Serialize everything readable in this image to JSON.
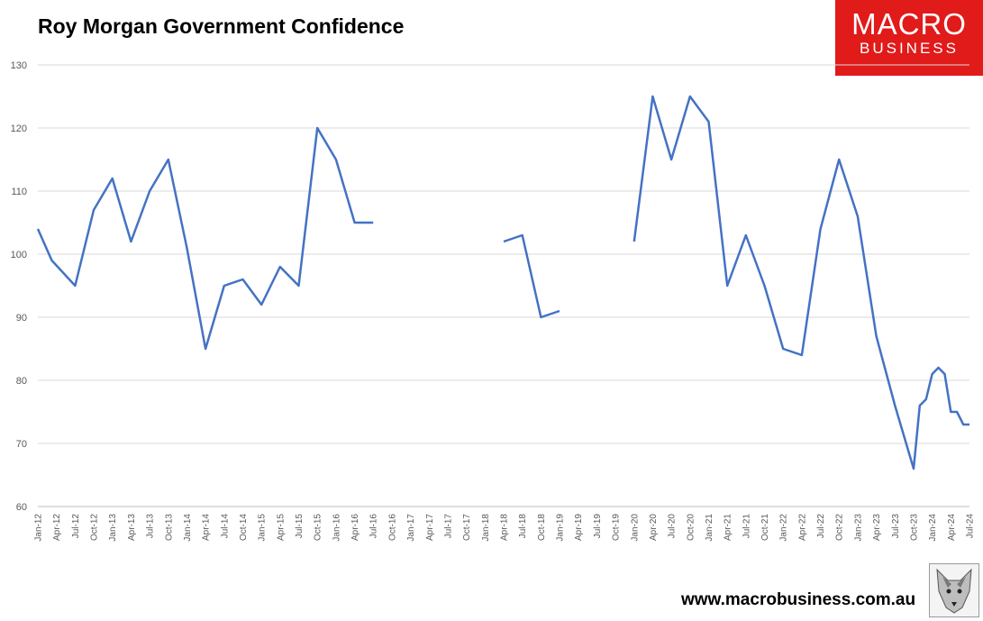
{
  "header": {
    "title": "Roy Morgan Government Confidence"
  },
  "logo": {
    "line1": "MACRO",
    "line2": "BUSINESS",
    "color": "#e11a1a"
  },
  "footer": {
    "website": "www.macrobusiness.com.au"
  },
  "chart_data": {
    "type": "line",
    "title": "Roy Morgan Government Confidence",
    "xlabel": "",
    "ylabel": "",
    "ylim": [
      60,
      130
    ],
    "yticks": [
      60,
      70,
      80,
      90,
      100,
      110,
      120,
      130
    ],
    "grid": true,
    "line_color": "#4472c4",
    "categories": [
      "Jan-12",
      "Apr-12",
      "Jul-12",
      "Oct-12",
      "Jan-13",
      "Apr-13",
      "Jul-13",
      "Oct-13",
      "Jan-14",
      "Apr-14",
      "Jul-14",
      "Oct-14",
      "Jan-15",
      "Apr-15",
      "Jul-15",
      "Oct-15",
      "Jan-16",
      "Apr-16",
      "Jul-16",
      "Oct-16",
      "Jan-17",
      "Apr-17",
      "Jul-17",
      "Oct-17",
      "Jan-18",
      "Apr-18",
      "Jul-18",
      "Oct-18",
      "Jan-19",
      "Apr-19",
      "Jul-19",
      "Oct-19",
      "Jan-20",
      "Apr-20",
      "Jul-20",
      "Oct-20",
      "Jan-21",
      "Apr-21",
      "Jul-21",
      "Oct-21",
      "Jan-22",
      "Apr-22",
      "Jul-22",
      "Oct-22",
      "Jan-23",
      "Apr-23",
      "Jul-23",
      "Oct-23",
      "Jan-24",
      "Apr-24",
      "Jul-24"
    ],
    "series": [
      {
        "points": [
          [
            0,
            104
          ],
          [
            0.75,
            99
          ],
          [
            2,
            95
          ],
          [
            3,
            107
          ],
          [
            4,
            112
          ],
          [
            5,
            102
          ],
          [
            6,
            110
          ],
          [
            7,
            115
          ],
          [
            8,
            101
          ],
          [
            9,
            85
          ],
          [
            10,
            95
          ],
          [
            11,
            96
          ],
          [
            12,
            92
          ],
          [
            13,
            98
          ],
          [
            14,
            95
          ],
          [
            15,
            120
          ],
          [
            16,
            115
          ],
          [
            17,
            105
          ],
          [
            18,
            105
          ],
          null,
          [
            25,
            102
          ],
          [
            26,
            103
          ],
          [
            27,
            90
          ],
          [
            28,
            91
          ],
          null,
          [
            32,
            102
          ],
          [
            33,
            125
          ],
          [
            34,
            115
          ],
          [
            35,
            125
          ],
          [
            36,
            121
          ],
          [
            37,
            95
          ],
          [
            38,
            103
          ],
          [
            39,
            95
          ],
          [
            40,
            85
          ],
          [
            41,
            84
          ],
          [
            42,
            104
          ],
          [
            43,
            115
          ],
          [
            44,
            106
          ],
          [
            45,
            87
          ],
          [
            46,
            76
          ],
          [
            47,
            66
          ],
          [
            47.33,
            76
          ],
          [
            47.67,
            77
          ],
          [
            48,
            81
          ],
          [
            48.33,
            82
          ],
          [
            48.67,
            81
          ],
          [
            49,
            75
          ],
          [
            49.33,
            75
          ],
          [
            49.67,
            73
          ],
          [
            50,
            73
          ]
        ]
      }
    ]
  }
}
